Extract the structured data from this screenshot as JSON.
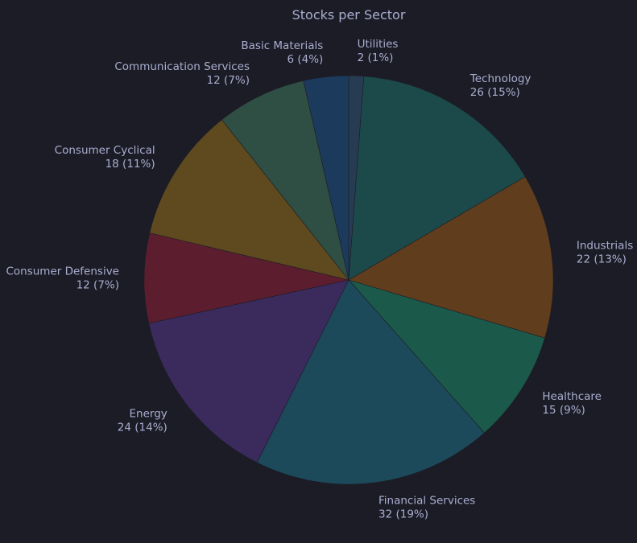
{
  "chart_data": {
    "type": "pie",
    "title": "Stocks per Sector",
    "slices": [
      {
        "name": "Utilities",
        "value": 2,
        "value_label": "2 (1%)",
        "color": "#273c52"
      },
      {
        "name": "Technology",
        "value": 26,
        "value_label": "26 (15%)",
        "color": "#1c4a4b"
      },
      {
        "name": "Industrials",
        "value": 22,
        "value_label": "22 (13%)",
        "color": "#603d1d"
      },
      {
        "name": "Healthcare",
        "value": 15,
        "value_label": "15 (9%)",
        "color": "#1b5a4b"
      },
      {
        "name": "Financial Services",
        "value": 32,
        "value_label": "32 (19%)",
        "color": "#1d4a5b"
      },
      {
        "name": "Energy",
        "value": 24,
        "value_label": "24 (14%)",
        "color": "#3b2a5c"
      },
      {
        "name": "Consumer Defensive",
        "value": 12,
        "value_label": "12 (7%)",
        "color": "#5c1e2e"
      },
      {
        "name": "Consumer Cyclical",
        "value": 18,
        "value_label": "18 (11%)",
        "color": "#5e4a1e"
      },
      {
        "name": "Communication Services",
        "value": 12,
        "value_label": "12 (7%)",
        "color": "#2f4f44"
      },
      {
        "name": "Basic Materials",
        "value": 6,
        "value_label": "6 (4%)",
        "color": "#1c3a5c"
      }
    ],
    "start_position": "top",
    "direction": "clockwise",
    "legend": "none"
  }
}
